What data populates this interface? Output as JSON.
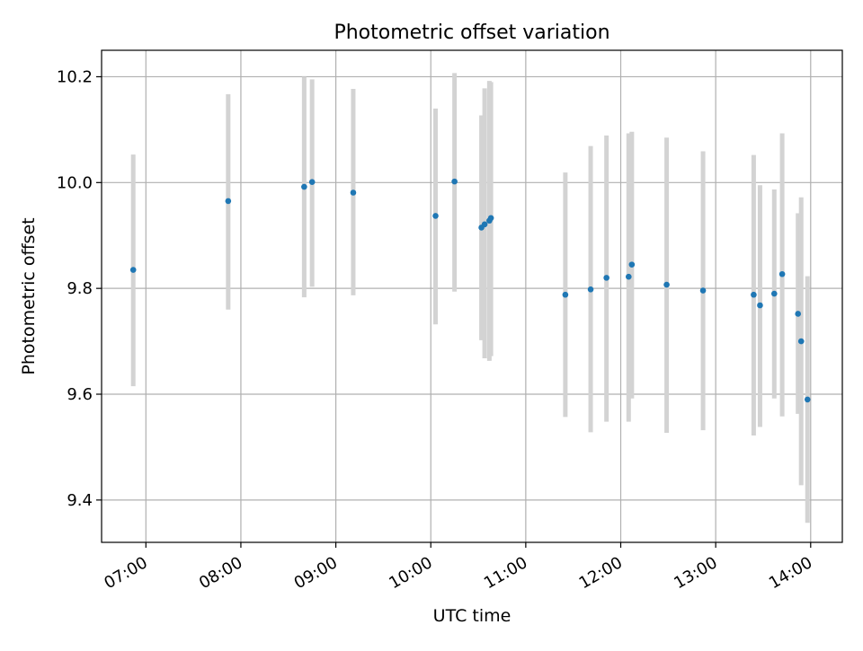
{
  "chart_data": {
    "type": "scatter",
    "title": "Photometric offset variation",
    "xlabel": "UTC time",
    "ylabel": "Photometric offset",
    "x_unit": "UTC time (HH:MM)",
    "xlim": [
      "06:32",
      "14:20"
    ],
    "ylim": [
      9.32,
      10.25
    ],
    "x_ticks": [
      "07:00",
      "08:00",
      "09:00",
      "10:00",
      "11:00",
      "12:00",
      "13:00",
      "14:00"
    ],
    "y_ticks": [
      "9.4",
      "9.6",
      "9.8",
      "10.0",
      "10.2"
    ],
    "grid": true,
    "legend": "none",
    "colors": {
      "point": "#1f77b4",
      "errorbar": "#d3d3d3",
      "grid": "#b0b0b0",
      "axes": "#000000"
    },
    "points": [
      {
        "x": "06:52",
        "y": 9.835,
        "y_low": 9.615,
        "y_high": 10.053
      },
      {
        "x": "07:52",
        "y": 9.965,
        "y_low": 9.76,
        "y_high": 10.167
      },
      {
        "x": "08:40",
        "y": 9.992,
        "y_low": 9.783,
        "y_high": 10.2
      },
      {
        "x": "08:45",
        "y": 10.001,
        "y_low": 9.803,
        "y_high": 10.195
      },
      {
        "x": "09:11",
        "y": 9.981,
        "y_low": 9.787,
        "y_high": 10.177
      },
      {
        "x": "10:03",
        "y": 9.937,
        "y_low": 9.732,
        "y_high": 10.14
      },
      {
        "x": "10:15",
        "y": 10.002,
        "y_low": 9.794,
        "y_high": 10.207
      },
      {
        "x": "10:32",
        "y": 9.915,
        "y_low": 9.702,
        "y_high": 10.127
      },
      {
        "x": "10:34",
        "y": 9.921,
        "y_low": 9.668,
        "y_high": 10.178
      },
      {
        "x": "10:37",
        "y": 9.928,
        "y_low": 9.663,
        "y_high": 10.192
      },
      {
        "x": "10:38",
        "y": 9.933,
        "y_low": 9.672,
        "y_high": 10.19
      },
      {
        "x": "11:25",
        "y": 9.788,
        "y_low": 9.557,
        "y_high": 10.019
      },
      {
        "x": "11:41",
        "y": 9.798,
        "y_low": 9.528,
        "y_high": 10.069
      },
      {
        "x": "11:51",
        "y": 9.82,
        "y_low": 9.548,
        "y_high": 10.089
      },
      {
        "x": "12:05",
        "y": 9.822,
        "y_low": 9.548,
        "y_high": 10.093
      },
      {
        "x": "12:07",
        "y": 9.845,
        "y_low": 9.592,
        "y_high": 10.096
      },
      {
        "x": "12:29",
        "y": 9.807,
        "y_low": 9.527,
        "y_high": 10.085
      },
      {
        "x": "12:52",
        "y": 9.796,
        "y_low": 9.532,
        "y_high": 10.059
      },
      {
        "x": "13:24",
        "y": 9.788,
        "y_low": 9.522,
        "y_high": 10.052
      },
      {
        "x": "13:28",
        "y": 9.768,
        "y_low": 9.538,
        "y_high": 9.995
      },
      {
        "x": "13:37",
        "y": 9.79,
        "y_low": 9.592,
        "y_high": 9.987
      },
      {
        "x": "13:42",
        "y": 9.827,
        "y_low": 9.558,
        "y_high": 10.093
      },
      {
        "x": "13:52",
        "y": 9.752,
        "y_low": 9.563,
        "y_high": 9.942
      },
      {
        "x": "13:54",
        "y": 9.7,
        "y_low": 9.428,
        "y_high": 9.972
      },
      {
        "x": "13:58",
        "y": 9.59,
        "y_low": 9.357,
        "y_high": 9.823
      }
    ]
  }
}
